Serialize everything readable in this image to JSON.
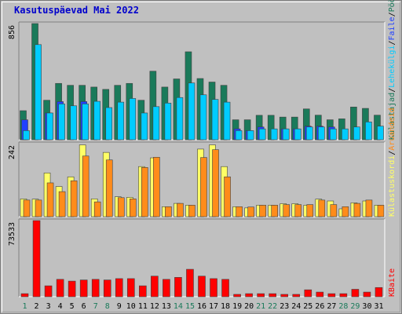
{
  "title": "Kasutuspäevad Mai 2022",
  "colors": {
    "visits": "#1a7a5a",
    "pages": "#00ccff",
    "hits": "#2040ff",
    "bandwidth": "#ff0000",
    "uniques": "#ffff66",
    "unique_ip": "#ff8c1a",
    "weekend_label": "#1a7a5a",
    "weekday_label": "#000000"
  },
  "chart_data": [
    {
      "type": "bar",
      "panel": "top",
      "y_max_label": "856",
      "ylim": [
        0,
        856
      ],
      "categories": [
        "1",
        "2",
        "3",
        "4",
        "5",
        "6",
        "7",
        "8",
        "9",
        "10",
        "11",
        "12",
        "13",
        "14",
        "15",
        "16",
        "17",
        "18",
        "19",
        "20",
        "21",
        "22",
        "23",
        "24",
        "25",
        "26",
        "27",
        "28",
        "29",
        "30",
        "31"
      ],
      "series": [
        {
          "name": "Külastajad",
          "values": [
            214,
            856,
            291,
            415,
            401,
            401,
            388,
            371,
            401,
            415,
            291,
            505,
            388,
            448,
            648,
            451,
            425,
            401,
            147,
            147,
            180,
            180,
            167,
            167,
            227,
            181,
            147,
            154,
            241,
            231,
            181
          ]
        },
        {
          "name": "Lehekülgi",
          "values": [
            67,
            701,
            197,
            264,
            250,
            264,
            283,
            237,
            277,
            304,
            197,
            244,
            270,
            311,
            418,
            331,
            297,
            277,
            67,
            67,
            80,
            80,
            80,
            80,
            94,
            94,
            80,
            80,
            94,
            131,
            100
          ]
        },
        {
          "name": "Faile",
          "values": [
            147,
            0,
            197,
            281,
            0,
            281,
            0,
            0,
            0,
            0,
            0,
            0,
            0,
            0,
            0,
            0,
            0,
            0,
            80,
            67,
            94,
            0,
            80,
            80,
            100,
            100,
            94,
            0,
            0,
            0,
            0
          ]
        }
      ]
    },
    {
      "type": "bar",
      "panel": "middle",
      "y_max_label": "242",
      "ylim": [
        0,
        242
      ],
      "categories": [
        "1",
        "2",
        "3",
        "4",
        "5",
        "6",
        "7",
        "8",
        "9",
        "10",
        "11",
        "12",
        "13",
        "14",
        "15",
        "16",
        "17",
        "18",
        "19",
        "20",
        "21",
        "22",
        "23",
        "24",
        "25",
        "26",
        "27",
        "28",
        "29",
        "30",
        "31"
      ],
      "series": [
        {
          "name": "Külastuskordi",
          "values": [
            59,
            58,
            145,
            100,
            132,
            238,
            59,
            213,
            66,
            64,
            166,
            195,
            33,
            44,
            38,
            224,
            238,
            166,
            33,
            29,
            38,
            38,
            43,
            43,
            38,
            58,
            52,
            26,
            46,
            52,
            38
          ]
        },
        {
          "name": "Aruandeid",
          "values": [
            55,
            55,
            112,
            83,
            119,
            201,
            49,
            188,
            63,
            59,
            163,
            197,
            33,
            44,
            38,
            196,
            222,
            132,
            33,
            32,
            38,
            38,
            40,
            40,
            40,
            55,
            40,
            33,
            44,
            55,
            38
          ]
        }
      ]
    },
    {
      "type": "bar",
      "panel": "bottom",
      "y_max_label": "73533",
      "ylim": [
        0,
        73533
      ],
      "categories": [
        "1",
        "2",
        "3",
        "4",
        "5",
        "6",
        "7",
        "8",
        "9",
        "10",
        "11",
        "12",
        "13",
        "14",
        "15",
        "16",
        "17",
        "18",
        "19",
        "20",
        "21",
        "22",
        "23",
        "24",
        "25",
        "26",
        "27",
        "28",
        "29",
        "30",
        "31"
      ],
      "series": [
        {
          "name": "KBaite",
          "values": [
            2980,
            73533,
            10550,
            16800,
            15100,
            16200,
            16800,
            16200,
            17500,
            17500,
            10550,
            19900,
            16800,
            18700,
            26500,
            19900,
            17500,
            16800,
            2300,
            2980,
            2980,
            2980,
            2300,
            2300,
            6700,
            4500,
            2980,
            2980,
            7200,
            4500,
            8900
          ]
        }
      ]
    }
  ],
  "weekend_days": [
    1,
    7,
    8,
    14,
    15,
    21,
    22,
    28,
    29
  ],
  "side_labels": {
    "top": [
      {
        "text": "Külastajad",
        "color": "#1a7a5a"
      },
      {
        "text": "/",
        "color": "#000000"
      },
      {
        "text": "Lehekülgi",
        "color": "#00ccff"
      },
      {
        "text": "/",
        "color": "#000000"
      },
      {
        "text": "Faile",
        "color": "#2040ff"
      },
      {
        "text": "/",
        "color": "#000000"
      },
      {
        "text": "Pöördumisi",
        "color": "#1a7a5a"
      }
    ],
    "middle": [
      {
        "text": "Külastuskordi",
        "color": "#ffff66"
      },
      {
        "text": "/",
        "color": "#000000"
      },
      {
        "text": "Aruandeid",
        "color": "#ff8c1a"
      }
    ],
    "bottom": [
      {
        "text": "KBaite",
        "color": "#ff0000"
      }
    ]
  }
}
